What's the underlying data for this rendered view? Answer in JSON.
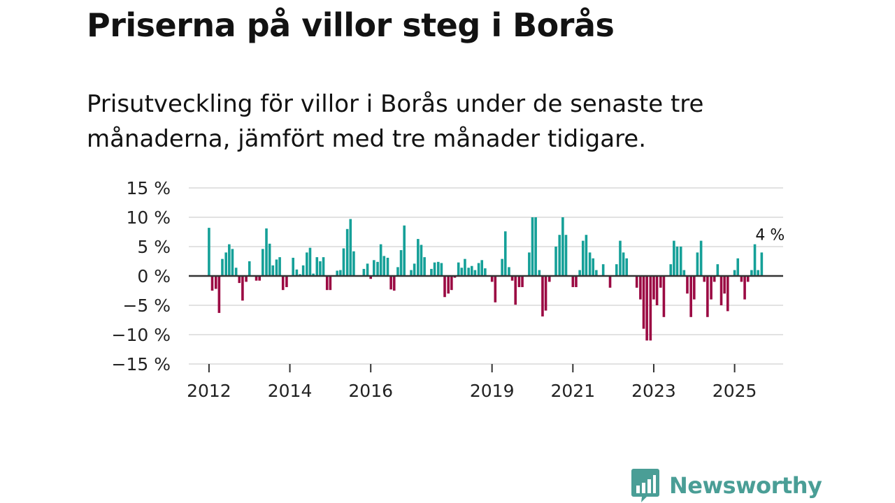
{
  "title": "Priserna på villor steg i Borås",
  "subtitle": "Prisutveckling för villor i Borås under de senaste tre månaderna, jämfört med tre månader tidigare.",
  "logo_text": "Newsworthy",
  "colors": {
    "positive": "#15a098",
    "negative": "#9b0a43",
    "grid": "#d9d9d9",
    "zero_line": "#333333",
    "logo": "#4a9e96"
  },
  "chart_data": {
    "type": "bar",
    "title": "Priserna på villor steg i Borås",
    "ylabel": "",
    "xlabel": "",
    "ylim": [
      -15,
      15
    ],
    "yticks": [
      15,
      10,
      5,
      0,
      -5,
      -10,
      -15
    ],
    "ytick_labels": [
      "15 %",
      "10 %",
      "5 %",
      "0 %",
      "−5 %",
      "−10 %",
      "−15 %"
    ],
    "xlim": [
      2011.5,
      2026.2
    ],
    "xticks": [
      2012,
      2014,
      2016,
      2019,
      2021,
      2023,
      2025
    ],
    "xtick_labels": [
      "2012",
      "2014",
      "2016",
      "2019",
      "2021",
      "2023",
      "2025"
    ],
    "annotation": {
      "text": "4 %",
      "x": 2025.67,
      "y": 4
    },
    "series": [
      {
        "name": "Prisutveckling",
        "x": [
          2012.0,
          2012.08,
          2012.17,
          2012.25,
          2012.33,
          2012.42,
          2012.5,
          2012.58,
          2012.67,
          2012.75,
          2012.83,
          2012.92,
          2013.0,
          2013.08,
          2013.17,
          2013.25,
          2013.33,
          2013.42,
          2013.5,
          2013.58,
          2013.67,
          2013.75,
          2013.83,
          2013.92,
          2014.0,
          2014.08,
          2014.17,
          2014.25,
          2014.33,
          2014.42,
          2014.5,
          2014.58,
          2014.67,
          2014.75,
          2014.83,
          2014.92,
          2015.0,
          2015.08,
          2015.17,
          2015.25,
          2015.33,
          2015.42,
          2015.5,
          2015.58,
          2015.67,
          2015.75,
          2015.83,
          2015.92,
          2016.0,
          2016.08,
          2016.17,
          2016.25,
          2016.33,
          2016.42,
          2016.5,
          2016.58,
          2016.67,
          2016.75,
          2016.83,
          2016.92,
          2017.0,
          2017.08,
          2017.17,
          2017.25,
          2017.33,
          2017.42,
          2017.5,
          2017.58,
          2017.67,
          2017.75,
          2017.83,
          2017.92,
          2018.0,
          2018.08,
          2018.17,
          2018.25,
          2018.33,
          2018.42,
          2018.5,
          2018.58,
          2018.67,
          2018.75,
          2018.83,
          2018.92,
          2019.0,
          2019.08,
          2019.17,
          2019.25,
          2019.33,
          2019.42,
          2019.5,
          2019.58,
          2019.67,
          2019.75,
          2019.83,
          2019.92,
          2020.0,
          2020.08,
          2020.17,
          2020.25,
          2020.33,
          2020.42,
          2020.5,
          2020.58,
          2020.67,
          2020.75,
          2020.83,
          2020.92,
          2021.0,
          2021.08,
          2021.17,
          2021.25,
          2021.33,
          2021.42,
          2021.5,
          2021.58,
          2021.67,
          2021.75,
          2021.83,
          2021.92,
          2022.0,
          2022.08,
          2022.17,
          2022.25,
          2022.33,
          2022.42,
          2022.5,
          2022.58,
          2022.67,
          2022.75,
          2022.83,
          2022.92,
          2023.0,
          2023.08,
          2023.17,
          2023.25,
          2023.33,
          2023.42,
          2023.5,
          2023.58,
          2023.67,
          2023.75,
          2023.83,
          2023.92,
          2024.0,
          2024.08,
          2024.17,
          2024.25,
          2024.33,
          2024.42,
          2024.5,
          2024.58,
          2024.67,
          2024.75,
          2024.83,
          2024.92,
          2025.0,
          2025.08,
          2025.17,
          2025.25,
          2025.33,
          2025.42,
          2025.5,
          2025.58,
          2025.67
        ],
        "values": [
          8.2,
          -2.5,
          -2.2,
          -6.3,
          2.9,
          4.0,
          5.4,
          4.6,
          1.4,
          -1.2,
          -4.2,
          -1.0,
          2.5,
          0,
          -0.8,
          -0.8,
          4.6,
          8.1,
          5.5,
          1.8,
          2.8,
          3.2,
          -2.4,
          -1.9,
          0,
          3.1,
          1.1,
          0.3,
          1.8,
          4.0,
          4.8,
          0.4,
          3.2,
          2.5,
          3.2,
          -2.4,
          -2.4,
          0,
          0.9,
          1.0,
          4.7,
          8.0,
          9.7,
          4.2,
          0,
          0,
          1.2,
          2.1,
          -0.5,
          2.7,
          2.4,
          5.4,
          3.4,
          3.1,
          -2.3,
          -2.5,
          1.5,
          4.4,
          8.6,
          0,
          1.0,
          2.1,
          6.3,
          5.3,
          3.2,
          0,
          1.2,
          2.3,
          2.4,
          2.2,
          -3.6,
          -3.0,
          -2.4,
          -0.3,
          2.3,
          1.4,
          2.9,
          1.4,
          1.7,
          1.0,
          2.2,
          2.7,
          1.3,
          0,
          -1.0,
          -4.5,
          0,
          2.9,
          7.6,
          1.5,
          -0.8,
          -4.9,
          -1.9,
          -1.9,
          0,
          4.0,
          10.0,
          10.0,
          1.0,
          -6.9,
          -5.9,
          -1.0,
          0,
          5.0,
          7.0,
          10.0,
          7.0,
          0,
          -1.9,
          -1.9,
          1.0,
          6.0,
          7.0,
          4.0,
          3.0,
          1.0,
          0,
          2.0,
          0,
          -2.0,
          0,
          2.0,
          6.0,
          4.0,
          3.0,
          0,
          0,
          -2.0,
          -4.0,
          -9.0,
          -11.0,
          -11.0,
          -4.0,
          -5.0,
          -2.0,
          -7.0,
          0,
          2.0,
          6.0,
          5.0,
          5.0,
          1.0,
          -3.0,
          -7.0,
          -4.0,
          4.0,
          6.0,
          -1.0,
          -7.0,
          -4.0,
          -1.0,
          2.0,
          -5.0,
          -3.0,
          -6.0,
          0,
          1.0,
          3.0,
          -1.0,
          -4.0,
          -1.0,
          1.0,
          5.4,
          1.0,
          4.0
        ]
      }
    ]
  }
}
